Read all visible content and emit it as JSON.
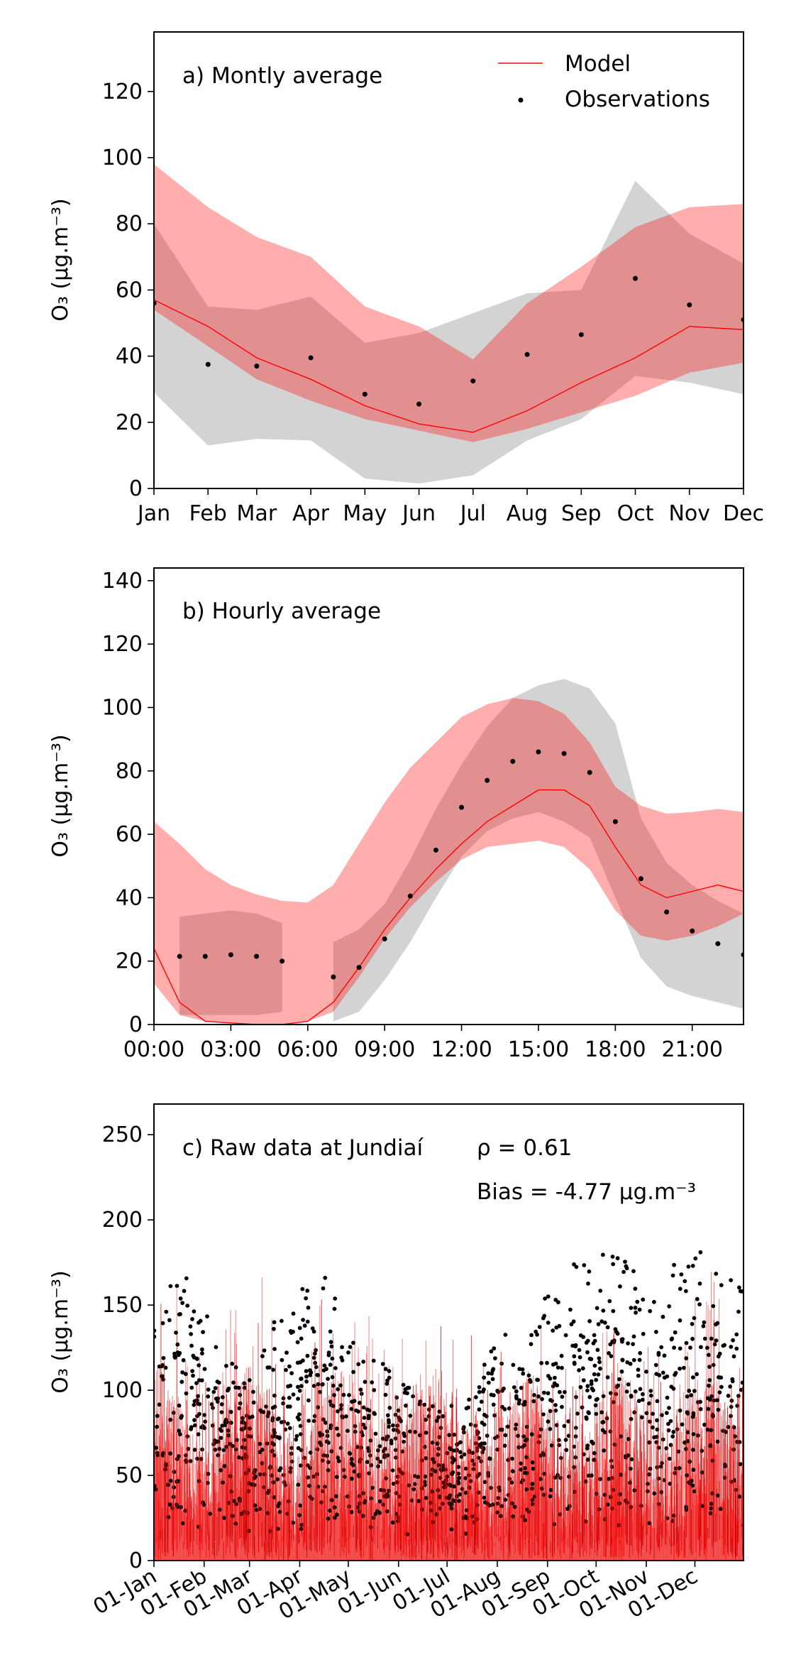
{
  "chart_data": [
    {
      "type": "line",
      "title": "a) Montly average",
      "ylabel": "O₃ (μg.m⁻³)",
      "xlabel": "",
      "ylim": [
        0,
        138
      ],
      "yticks": [
        0,
        20,
        40,
        60,
        80,
        100,
        120
      ],
      "categories": [
        "Jan",
        "Feb",
        "Mar",
        "Apr",
        "May",
        "Jun",
        "Jul",
        "Aug",
        "Sep",
        "Oct",
        "Nov",
        "Dec"
      ],
      "x": [
        0,
        1,
        1.9,
        2.9,
        3.9,
        4.9,
        5.9,
        6.9,
        7.9,
        8.9,
        9.9,
        10.9
      ],
      "legend": {
        "placement": "top-right",
        "model_label": "Model",
        "obs_label": "Observations"
      },
      "series": [
        {
          "name": "Model",
          "values": [
            57,
            49,
            39.5,
            33,
            25,
            19.5,
            17,
            23.5,
            32,
            39.5,
            49,
            48
          ]
        },
        {
          "name": "Observations",
          "values": [
            56,
            37.5,
            37,
            39.5,
            28.5,
            25.5,
            32.5,
            40.5,
            46.5,
            63.5,
            55.5,
            51
          ]
        }
      ],
      "model_band": {
        "low": [
          54,
          43,
          33,
          26.5,
          21,
          17.5,
          14,
          18,
          23,
          28,
          35,
          38
        ],
        "high": [
          98,
          85,
          76,
          70,
          55,
          49,
          39,
          56,
          67,
          79,
          85,
          86
        ]
      },
      "obs_band": {
        "low": [
          29,
          13,
          15,
          14.5,
          3,
          1.5,
          4,
          14.5,
          21,
          34,
          32,
          28.5
        ],
        "high": [
          80,
          55,
          54,
          58,
          44,
          47,
          53,
          59,
          60,
          93,
          77,
          68
        ]
      },
      "colors": {
        "model": "#ff0000",
        "model_band": "#ffaaaa",
        "obs_band": "#c8c8c8",
        "obs": "#000000"
      }
    },
    {
      "type": "line",
      "title": "b) Hourly average",
      "ylabel": "O₃ (μg.m⁻³)",
      "xlabel": "",
      "ylim": [
        0,
        144
      ],
      "xlim": [
        0,
        23
      ],
      "yticks": [
        0,
        20,
        40,
        60,
        80,
        100,
        120,
        140
      ],
      "xtick_values": [
        0,
        3,
        6,
        9,
        12,
        15,
        18,
        21
      ],
      "xtick_labels": [
        "00:00",
        "03:00",
        "06:00",
        "09:00",
        "12:00",
        "15:00",
        "18:00",
        "21:00"
      ],
      "x": [
        0,
        1,
        2,
        3,
        4,
        5,
        6,
        7,
        8,
        9,
        10,
        11,
        12,
        13,
        14,
        15,
        16,
        17,
        18,
        19,
        20,
        21,
        22,
        23
      ],
      "series": [
        {
          "name": "Model",
          "values": [
            24,
            7,
            1,
            0.5,
            0,
            0,
            1,
            7,
            18,
            30,
            40,
            49,
            57,
            64,
            69,
            74,
            74,
            69,
            56,
            44,
            40,
            42,
            44,
            42
          ]
        },
        {
          "name": "Observations",
          "x": [
            1,
            2,
            3,
            4,
            5,
            7,
            8,
            9,
            10,
            11,
            12,
            13,
            14,
            15,
            16,
            17,
            18,
            19,
            20,
            21,
            22,
            23
          ],
          "values": [
            21.5,
            21.5,
            22,
            21.5,
            20,
            15,
            18,
            27,
            40.5,
            55,
            68.5,
            77,
            83,
            86,
            85.5,
            79.5,
            64,
            46,
            35.5,
            29.5,
            25.5,
            22
          ]
        }
      ],
      "model_band": {
        "low": [
          13,
          3,
          1,
          0.5,
          0,
          0,
          1,
          4,
          15,
          27,
          37,
          45,
          52,
          56,
          57,
          58,
          56,
          49,
          36,
          28,
          26.5,
          28,
          31,
          35
        ],
        "high": [
          64,
          57,
          49,
          44,
          41,
          39,
          38.5,
          44,
          57,
          70,
          81,
          89,
          97,
          101,
          103,
          102,
          98,
          89,
          75,
          69,
          66.5,
          67,
          68,
          67
        ]
      },
      "obs_band_segments": [
        {
          "x": [
            1,
            2,
            3,
            4,
            5
          ],
          "low": [
            3,
            3,
            3,
            3,
            4
          ],
          "high": [
            34,
            35,
            36,
            35,
            32
          ]
        },
        {
          "x": [
            7,
            8,
            9,
            10,
            11,
            12,
            13,
            14,
            15,
            16,
            17,
            18,
            19,
            20,
            21,
            22,
            23
          ],
          "low": [
            1,
            4,
            14,
            26,
            40,
            53,
            61,
            65,
            67,
            64,
            59,
            40,
            21,
            12,
            9,
            7,
            5
          ],
          "high": [
            26,
            30,
            38,
            52,
            68,
            82,
            94,
            103,
            107,
            109,
            106,
            95,
            65,
            51,
            44,
            39,
            35
          ]
        }
      ],
      "colors": {
        "model": "#ff0000",
        "model_band": "#ffaaaa",
        "obs_band": "#c8c8c8",
        "obs": "#000000"
      }
    },
    {
      "type": "scatter",
      "title": "c) Raw data at Jundiaí",
      "stats": {
        "rho": "ρ = 0.61",
        "bias": "Bias = -4.77 μg.m⁻³"
      },
      "ylabel": "O₃ (μg.m⁻³)",
      "xlabel": "",
      "ylim": [
        0,
        268
      ],
      "yticks": [
        0,
        50,
        100,
        150,
        200,
        250
      ],
      "xtick_labels": [
        "01-Jan",
        "01-Feb",
        "01-Mar",
        "01-Apr",
        "01-May",
        "01-Jun",
        "01-Jul",
        "01-Aug",
        "01-Sep",
        "01-Oct",
        "01-Nov",
        "01-Dec"
      ],
      "xtick_dates": [
        "2019-01-01",
        "2019-02-01",
        "2019-03-01",
        "2019-04-01",
        "2019-05-01",
        "2019-06-01",
        "2019-07-01",
        "2019-08-01",
        "2019-09-01",
        "2019-10-01",
        "2019-11-01",
        "2019-12-01"
      ],
      "xlim": [
        "2019-01-01",
        "2019-12-31"
      ],
      "series": [
        {
          "name": "Model",
          "kind": "hourly-line"
        },
        {
          "name": "Observations",
          "kind": "hourly-points"
        }
      ],
      "obs_upper_envelope": {
        "x": [
          "2019-01-01",
          "2019-01-16",
          "2019-02-01",
          "2019-02-16",
          "2019-03-01",
          "2019-03-16",
          "2019-04-01",
          "2019-04-16",
          "2019-05-01",
          "2019-05-16",
          "2019-06-01",
          "2019-06-16",
          "2019-07-01",
          "2019-07-16",
          "2019-08-01",
          "2019-08-16",
          "2019-09-01",
          "2019-09-16",
          "2019-10-01",
          "2019-10-16",
          "2019-11-01",
          "2019-11-16",
          "2019-12-01",
          "2019-12-16",
          "2019-12-31"
        ],
        "values": [
          135,
          175,
          170,
          120,
          110,
          140,
          160,
          175,
          130,
          120,
          115,
          95,
          90,
          95,
          140,
          120,
          160,
          175,
          180,
          182,
          160,
          175,
          183,
          175,
          170
        ]
      },
      "obs_typical_range": [
        20,
        120
      ],
      "model_typical_range": [
        0,
        110
      ],
      "colors": {
        "model": "#ff0000",
        "model_dark": "#cc0000",
        "obs": "#000000"
      }
    }
  ]
}
